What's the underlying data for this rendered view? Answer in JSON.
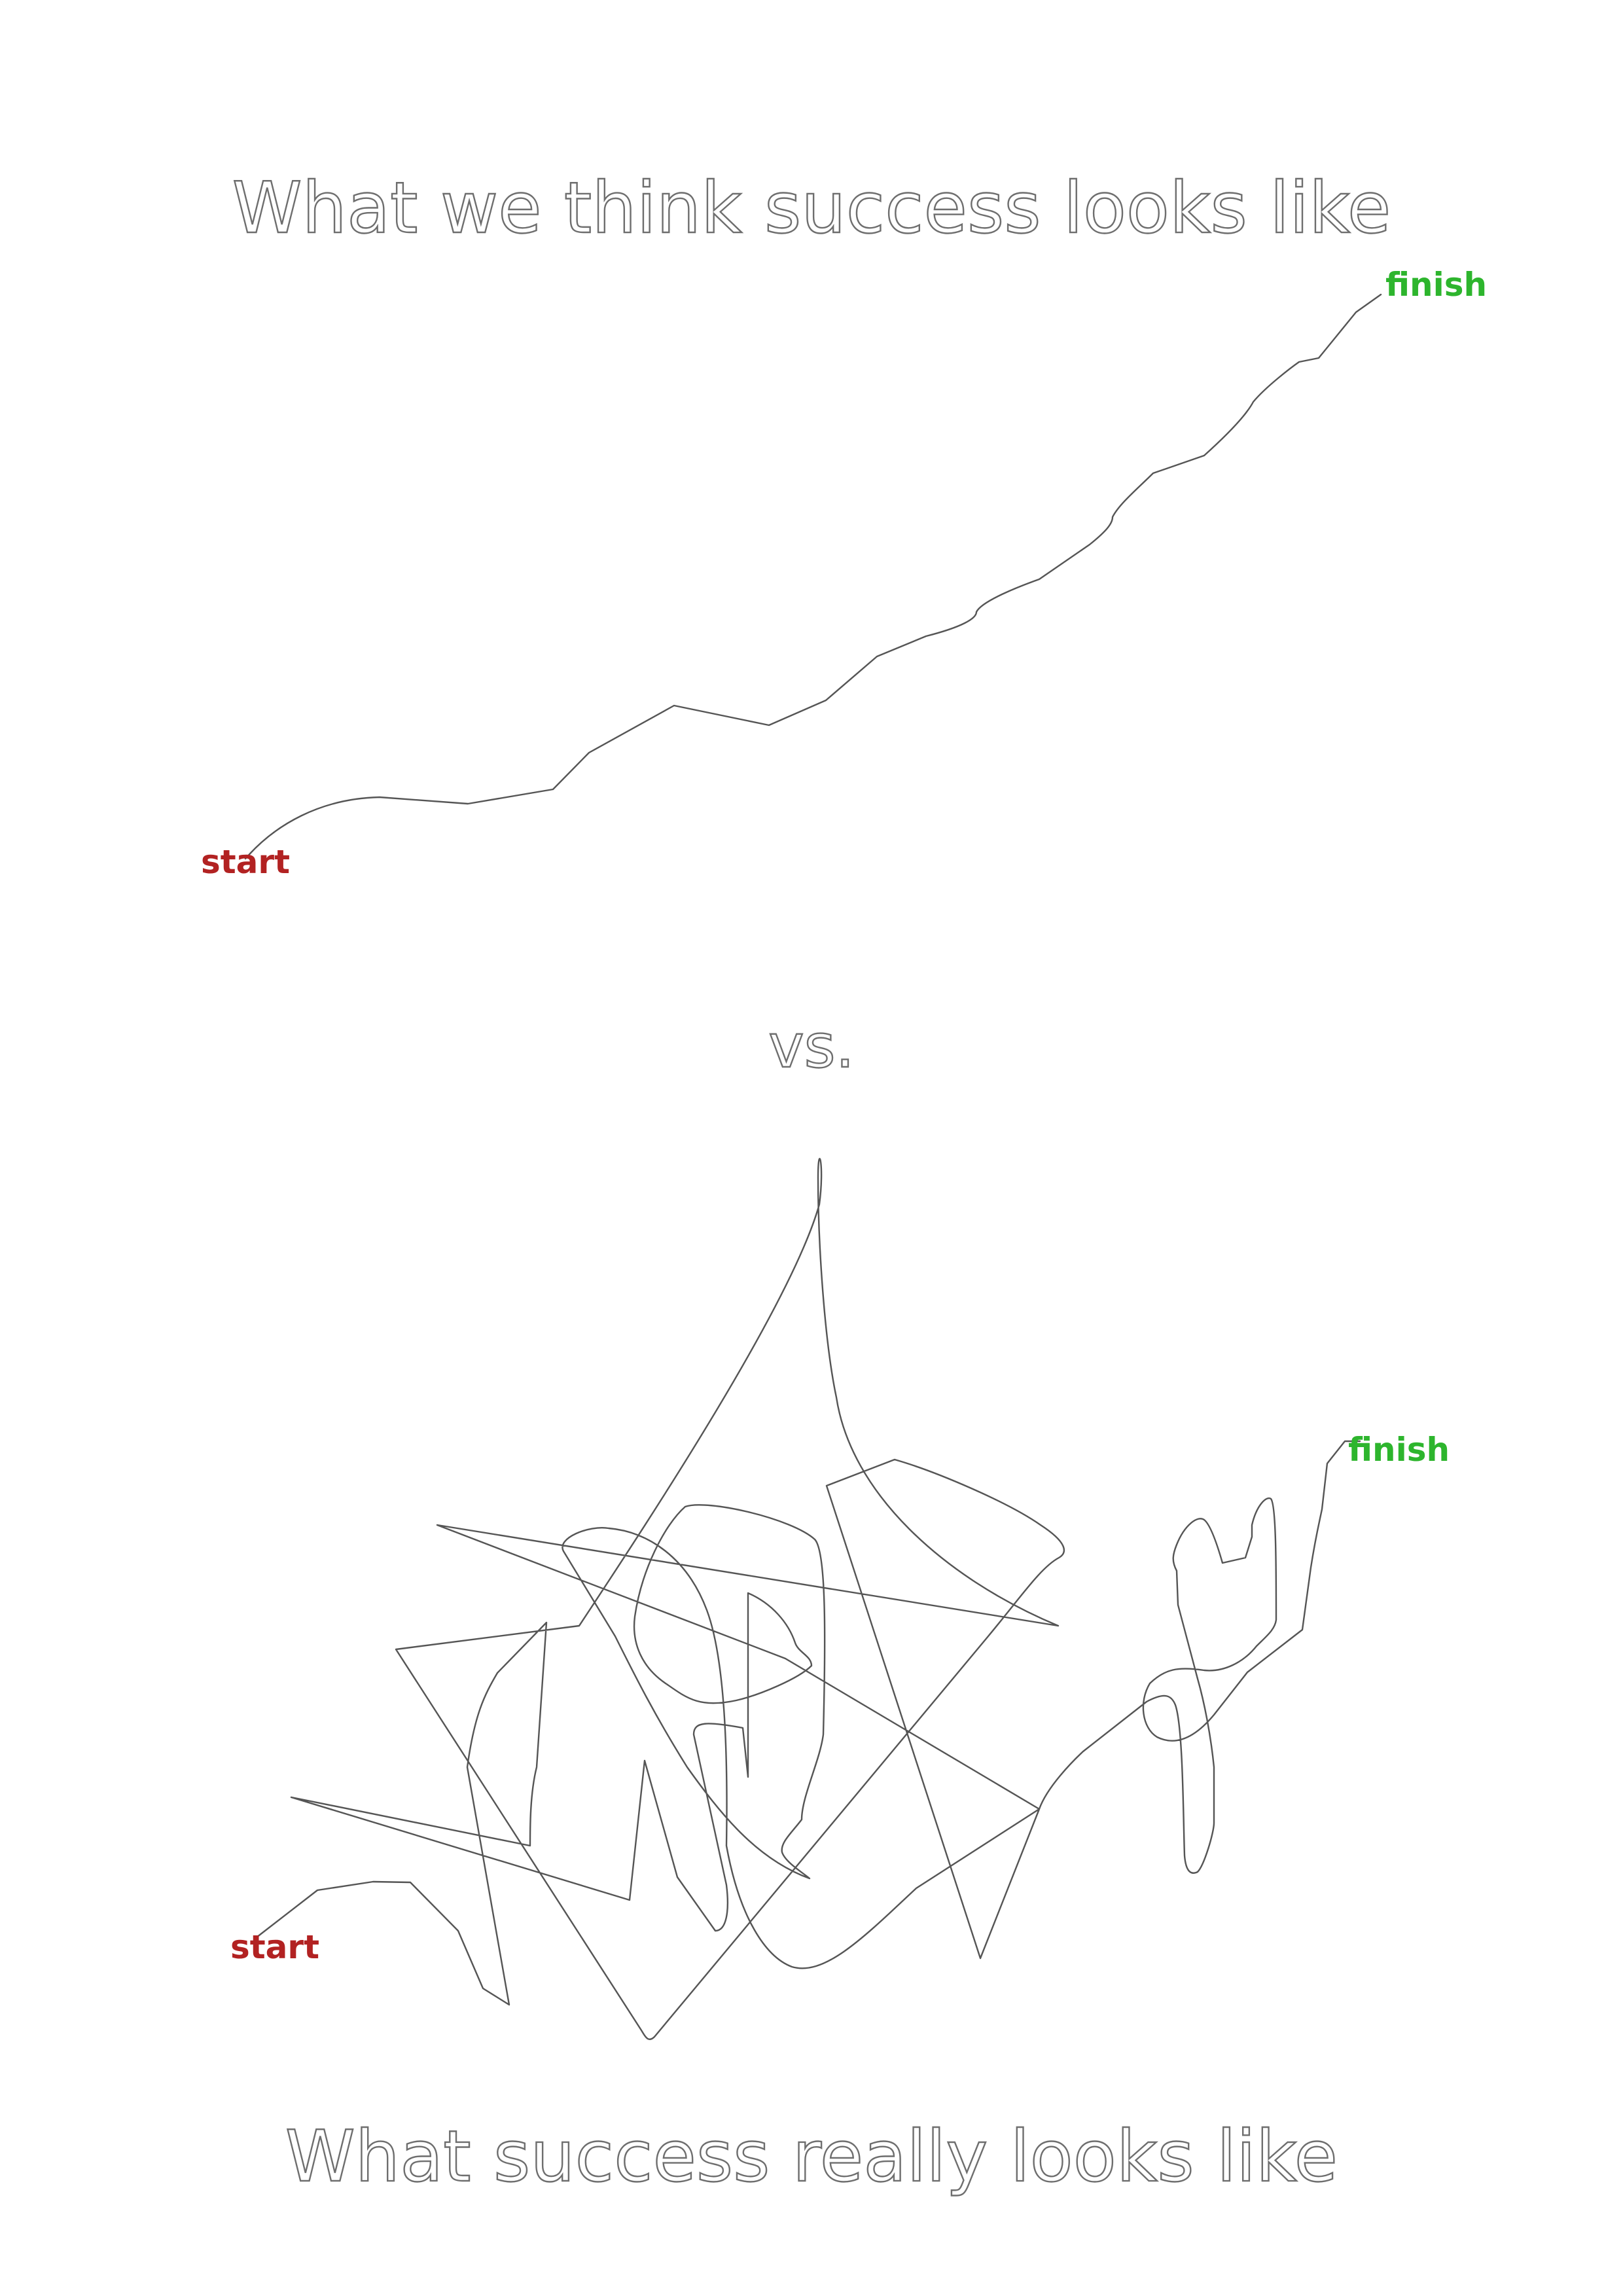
{
  "titles": {
    "top": "What we think success looks like",
    "middle": "vs.",
    "bottom": "What success really looks like"
  },
  "ideal_path": {
    "start_label": "start",
    "finish_label": "finish"
  },
  "real_path": {
    "start_label": "start",
    "finish_label": "finish"
  },
  "colors": {
    "title_outline": "#6e6e6e",
    "line": "#555555",
    "start": "#b22222",
    "finish": "#2db52d",
    "background": "#ffffff"
  }
}
